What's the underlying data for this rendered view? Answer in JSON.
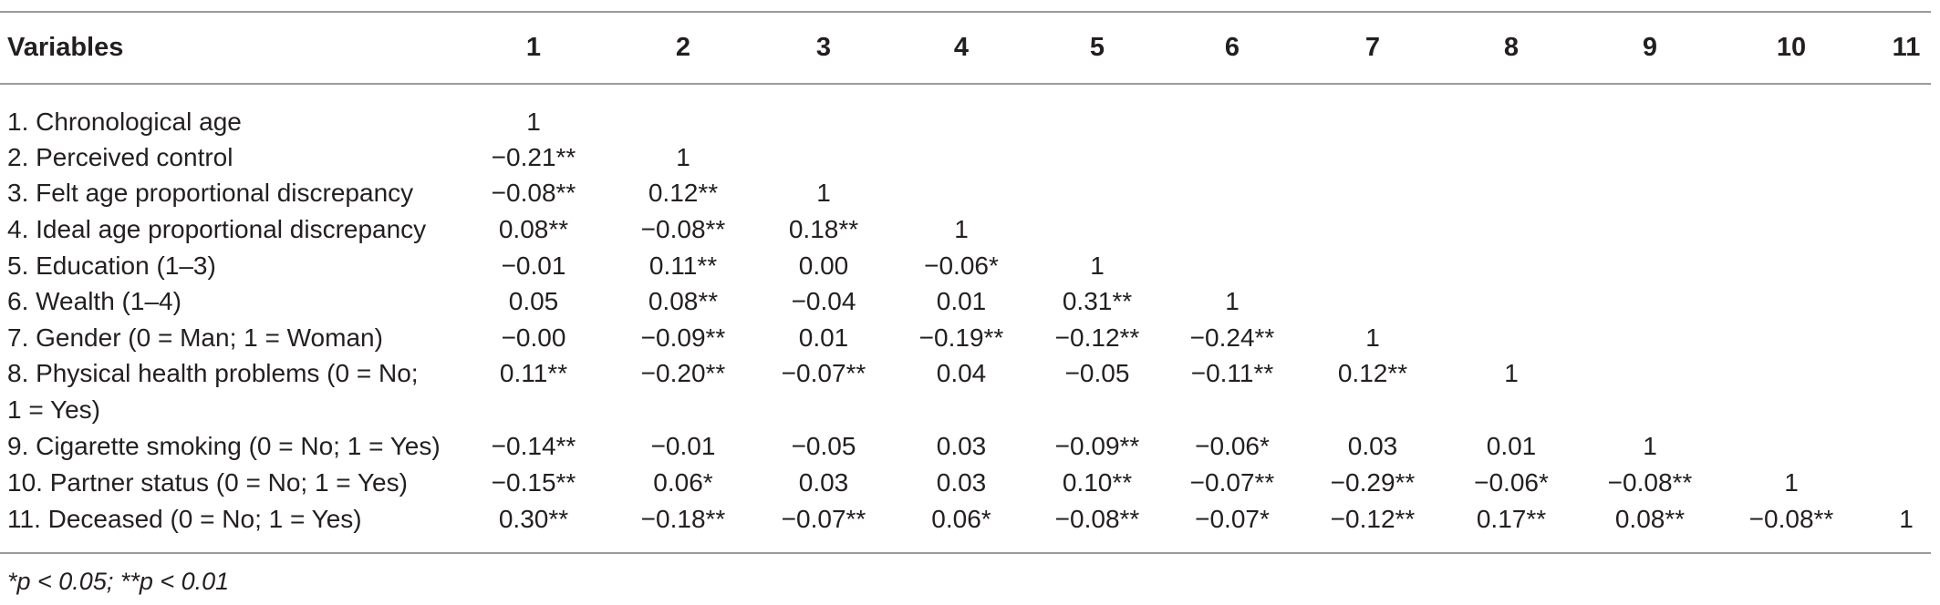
{
  "table": {
    "header": {
      "variables_label": "Variables",
      "columns": [
        "1",
        "2",
        "3",
        "4",
        "5",
        "6",
        "7",
        "8",
        "9",
        "10",
        "11"
      ]
    },
    "rows": [
      {
        "label_lines": [
          "1. Chronological age"
        ],
        "values": [
          "1",
          "",
          "",
          "",
          "",
          "",
          "",
          "",
          "",
          "",
          ""
        ]
      },
      {
        "label_lines": [
          "2. Perceived control"
        ],
        "values": [
          "−0.21**",
          "1",
          "",
          "",
          "",
          "",
          "",
          "",
          "",
          "",
          ""
        ]
      },
      {
        "label_lines": [
          "3. Felt age proportional discrepancy"
        ],
        "values": [
          "−0.08**",
          "0.12**",
          "1",
          "",
          "",
          "",
          "",
          "",
          "",
          "",
          ""
        ]
      },
      {
        "label_lines": [
          "4. Ideal age proportional discrepancy"
        ],
        "values": [
          "0.08**",
          "−0.08**",
          "0.18**",
          "1",
          "",
          "",
          "",
          "",
          "",
          "",
          ""
        ]
      },
      {
        "label_lines": [
          "5. Education (1–3)"
        ],
        "values": [
          "−0.01",
          "0.11**",
          "0.00",
          "−0.06*",
          "1",
          "",
          "",
          "",
          "",
          "",
          ""
        ]
      },
      {
        "label_lines": [
          "6. Wealth (1–4)"
        ],
        "values": [
          "0.05",
          "0.08**",
          "−0.04",
          "0.01",
          "0.31**",
          "1",
          "",
          "",
          "",
          "",
          ""
        ]
      },
      {
        "label_lines": [
          "7. Gender (0 = Man; 1 = Woman)"
        ],
        "values": [
          "−0.00",
          "−0.09**",
          "0.01",
          "−0.19**",
          "−0.12**",
          "−0.24**",
          "1",
          "",
          "",
          "",
          ""
        ]
      },
      {
        "label_lines": [
          "8. Physical health problems (0 = No;",
          "1 = Yes)"
        ],
        "values": [
          "0.11**",
          "−0.20**",
          "−0.07**",
          "0.04",
          "−0.05",
          "−0.11**",
          "0.12**",
          "1",
          "",
          "",
          ""
        ]
      },
      {
        "label_lines": [
          "9. Cigarette smoking (0 = No; 1 = Yes)"
        ],
        "values": [
          "−0.14**",
          "−0.01",
          "−0.05",
          "0.03",
          "−0.09**",
          "−0.06*",
          "0.03",
          "0.01",
          "1",
          "",
          ""
        ]
      },
      {
        "label_lines": [
          "10. Partner status (0 = No; 1 = Yes)"
        ],
        "values": [
          "−0.15**",
          "0.06*",
          "0.03",
          "0.03",
          "0.10**",
          "−0.07**",
          "−0.29**",
          "−0.06*",
          "−0.08**",
          "1",
          ""
        ]
      },
      {
        "label_lines": [
          "11. Deceased (0 = No; 1 = Yes)"
        ],
        "values": [
          "0.30**",
          "−0.18**",
          "−0.07**",
          "0.06*",
          "−0.08**",
          "−0.07*",
          "−0.12**",
          "0.17**",
          "0.08**",
          "−0.08**",
          "1"
        ]
      }
    ],
    "footnote": "*p < 0.05; **p < 0.01"
  }
}
